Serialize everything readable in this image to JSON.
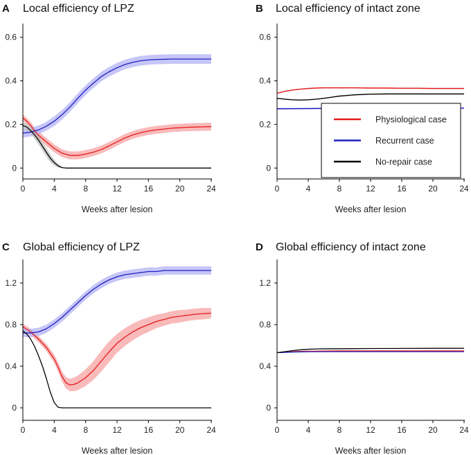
{
  "chart_data": [
    {
      "letter": "A",
      "type": "line",
      "title": "Local efficiency of LPZ",
      "xlabel": "Weeks after lesion",
      "ylabel": "",
      "xlim": [
        0,
        24
      ],
      "ylim": [
        -0.05,
        0.65
      ],
      "xticks": [
        "0",
        "4",
        "8",
        "12",
        "16",
        "20",
        "24"
      ],
      "yticks": [
        "0",
        "0.2",
        "0.4",
        "0.6"
      ],
      "series": [
        {
          "name": "Physiological case",
          "color": "#e31a1c",
          "band_color": "#f7a3a3",
          "x": [
            0,
            0.5,
            1,
            1.5,
            2,
            3,
            4,
            5,
            6,
            7,
            8,
            9,
            10,
            11,
            12,
            13,
            14,
            15,
            16,
            17,
            18,
            19,
            20,
            21,
            22,
            23,
            24
          ],
          "y": [
            0.23,
            0.215,
            0.195,
            0.17,
            0.15,
            0.12,
            0.09,
            0.068,
            0.058,
            0.058,
            0.064,
            0.073,
            0.085,
            0.102,
            0.12,
            0.138,
            0.152,
            0.162,
            0.17,
            0.175,
            0.179,
            0.183,
            0.185,
            0.187,
            0.188,
            0.189,
            0.19
          ],
          "band": [
            0.015,
            0.015,
            0.015,
            0.016,
            0.017,
            0.018,
            0.018,
            0.018,
            0.018,
            0.018,
            0.018,
            0.018,
            0.018,
            0.018,
            0.018,
            0.018,
            0.018,
            0.018,
            0.018,
            0.018,
            0.018,
            0.018,
            0.018,
            0.018,
            0.018,
            0.018,
            0.018
          ]
        },
        {
          "name": "Recurrent case",
          "color": "#1f1fbf",
          "band_color": "#b3b3f5",
          "x": [
            0,
            1,
            2,
            3,
            4,
            5,
            6,
            7,
            8,
            9,
            10,
            11,
            12,
            13,
            14,
            15,
            16,
            17,
            18,
            19,
            20,
            21,
            22,
            23,
            24
          ],
          "y": [
            0.16,
            0.165,
            0.175,
            0.192,
            0.215,
            0.245,
            0.28,
            0.32,
            0.358,
            0.39,
            0.42,
            0.442,
            0.46,
            0.475,
            0.485,
            0.492,
            0.496,
            0.498,
            0.499,
            0.5,
            0.5,
            0.5,
            0.5,
            0.5,
            0.5
          ],
          "band": [
            0.02,
            0.02,
            0.02,
            0.02,
            0.022,
            0.022,
            0.022,
            0.022,
            0.022,
            0.022,
            0.022,
            0.022,
            0.022,
            0.022,
            0.022,
            0.022,
            0.022,
            0.022,
            0.022,
            0.022,
            0.022,
            0.022,
            0.022,
            0.022,
            0.022
          ]
        },
        {
          "name": "No-repair case",
          "color": "#000000",
          "band_color": "#bdbdbd",
          "x": [
            0,
            0.5,
            1,
            1.5,
            2,
            2.5,
            3,
            3.5,
            4,
            4.5,
            5,
            5.5,
            6,
            8,
            12,
            16,
            20,
            24
          ],
          "y": [
            0.195,
            0.188,
            0.172,
            0.152,
            0.128,
            0.1,
            0.072,
            0.045,
            0.025,
            0.01,
            0.002,
            0,
            0,
            0,
            0,
            0,
            0,
            0
          ],
          "band": [
            0.015,
            0.015,
            0.016,
            0.018,
            0.02,
            0.02,
            0.02,
            0.018,
            0.014,
            0.008,
            0.003,
            0,
            0,
            0,
            0,
            0,
            0,
            0
          ]
        }
      ]
    },
    {
      "letter": "B",
      "type": "line",
      "title": "Local efficiency of intact zone",
      "xlabel": "Weeks after lesion",
      "ylabel": "",
      "xlim": [
        0,
        24
      ],
      "ylim": [
        -0.05,
        0.65
      ],
      "xticks": [
        "0",
        "4",
        "8",
        "12",
        "16",
        "20",
        "24"
      ],
      "yticks": [
        "0",
        "0.2",
        "0.4",
        "0.6"
      ],
      "legend": {
        "position": "bottom-right",
        "entries": [
          "Physiological case",
          "Recurrent case",
          "No-repair case"
        ]
      },
      "series": [
        {
          "name": "Physiological case",
          "color": "#e31a1c",
          "band_color": "#f7a3a3",
          "x": [
            0,
            1,
            2,
            3,
            4,
            5,
            6,
            8,
            10,
            12,
            14,
            16,
            18,
            20,
            22,
            24
          ],
          "y": [
            0.343,
            0.352,
            0.358,
            0.362,
            0.365,
            0.367,
            0.368,
            0.368,
            0.368,
            0.367,
            0.367,
            0.366,
            0.366,
            0.365,
            0.365,
            0.365
          ],
          "band": [
            0.003,
            0.003,
            0.003,
            0.003,
            0.003,
            0.003,
            0.003,
            0.003,
            0.003,
            0.003,
            0.003,
            0.003,
            0.003,
            0.003,
            0.003,
            0.003
          ]
        },
        {
          "name": "Recurrent case",
          "color": "#1f1fbf",
          "band_color": "#b3b3f5",
          "x": [
            0,
            4,
            8,
            12,
            16,
            20,
            24
          ],
          "y": [
            0.272,
            0.273,
            0.274,
            0.275,
            0.275,
            0.275,
            0.275
          ],
          "band": [
            0.004,
            0.004,
            0.004,
            0.004,
            0.004,
            0.004,
            0.004
          ]
        },
        {
          "name": "No-repair case",
          "color": "#000000",
          "band_color": "#bdbdbd",
          "x": [
            0,
            1,
            2,
            3,
            4,
            5,
            6,
            7,
            8,
            10,
            12,
            14,
            16,
            18,
            20,
            22,
            24
          ],
          "y": [
            0.32,
            0.316,
            0.313,
            0.312,
            0.313,
            0.316,
            0.32,
            0.325,
            0.33,
            0.336,
            0.339,
            0.34,
            0.34,
            0.34,
            0.34,
            0.34,
            0.34
          ],
          "band": [
            0.003,
            0.003,
            0.003,
            0.003,
            0.003,
            0.003,
            0.003,
            0.003,
            0.003,
            0.003,
            0.003,
            0.003,
            0.003,
            0.003,
            0.003,
            0.003,
            0.003
          ]
        }
      ]
    },
    {
      "letter": "C",
      "type": "line",
      "title": "Global efficiency of LPZ",
      "xlabel": "Weeks after lesion",
      "ylabel": "",
      "xlim": [
        0,
        24
      ],
      "ylim": [
        -0.12,
        1.4
      ],
      "xticks": [
        "0",
        "4",
        "8",
        "12",
        "16",
        "20",
        "24"
      ],
      "yticks": [
        "0",
        "0.4",
        "0.8",
        "1.2"
      ],
      "series": [
        {
          "name": "Physiological case",
          "color": "#e31a1c",
          "band_color": "#f7a3a3",
          "x": [
            0,
            1,
            2,
            3,
            4,
            4.5,
            5,
            5.5,
            6,
            6.5,
            7,
            8,
            9,
            10,
            11,
            12,
            13,
            14,
            15,
            16,
            17,
            18,
            19,
            20,
            21,
            22,
            23,
            24
          ],
          "y": [
            0.78,
            0.73,
            0.66,
            0.58,
            0.47,
            0.39,
            0.3,
            0.24,
            0.22,
            0.225,
            0.24,
            0.29,
            0.36,
            0.45,
            0.54,
            0.62,
            0.68,
            0.73,
            0.77,
            0.8,
            0.83,
            0.85,
            0.87,
            0.88,
            0.89,
            0.9,
            0.905,
            0.91
          ],
          "band": [
            0.03,
            0.03,
            0.03,
            0.035,
            0.04,
            0.045,
            0.05,
            0.055,
            0.06,
            0.065,
            0.07,
            0.08,
            0.09,
            0.1,
            0.1,
            0.09,
            0.085,
            0.08,
            0.075,
            0.07,
            0.065,
            0.06,
            0.06,
            0.06,
            0.055,
            0.055,
            0.055,
            0.05
          ]
        },
        {
          "name": "Recurrent case",
          "color": "#1f1fbf",
          "band_color": "#b3b3f5",
          "x": [
            0,
            1,
            2,
            3,
            4,
            5,
            6,
            7,
            8,
            9,
            10,
            11,
            12,
            13,
            14,
            15,
            16,
            17,
            18,
            19,
            20,
            21,
            22,
            23,
            24
          ],
          "y": [
            0.72,
            0.72,
            0.73,
            0.76,
            0.81,
            0.87,
            0.94,
            1.01,
            1.08,
            1.14,
            1.19,
            1.23,
            1.26,
            1.28,
            1.29,
            1.3,
            1.31,
            1.31,
            1.32,
            1.32,
            1.32,
            1.32,
            1.32,
            1.32,
            1.32
          ],
          "band": [
            0.04,
            0.04,
            0.04,
            0.04,
            0.04,
            0.04,
            0.04,
            0.04,
            0.04,
            0.04,
            0.04,
            0.04,
            0.04,
            0.04,
            0.04,
            0.04,
            0.04,
            0.04,
            0.04,
            0.04,
            0.04,
            0.04,
            0.04,
            0.04,
            0.04
          ]
        },
        {
          "name": "No-repair case",
          "color": "#000000",
          "band_color": "#bdbdbd",
          "x": [
            0,
            0.5,
            1,
            1.5,
            2,
            2.5,
            3,
            3.5,
            4,
            4.5,
            5,
            6,
            8,
            12,
            16,
            20,
            24
          ],
          "y": [
            0.74,
            0.71,
            0.66,
            0.59,
            0.5,
            0.4,
            0.28,
            0.15,
            0.05,
            0.005,
            0,
            0,
            0,
            0,
            0,
            0,
            0
          ],
          "band": [
            0,
            0,
            0,
            0,
            0,
            0,
            0,
            0,
            0,
            0,
            0,
            0,
            0,
            0,
            0,
            0,
            0
          ]
        }
      ]
    },
    {
      "letter": "D",
      "type": "line",
      "title": "Global efficiency of intact zone",
      "xlabel": "Weeks after lesion",
      "ylabel": "",
      "xlim": [
        0,
        24
      ],
      "ylim": [
        -0.12,
        1.4
      ],
      "xticks": [
        "0",
        "4",
        "8",
        "12",
        "16",
        "20",
        "24"
      ],
      "yticks": [
        "0",
        "0.4",
        "0.8",
        "1.2"
      ],
      "series": [
        {
          "name": "Physiological case",
          "color": "#e31a1c",
          "band_color": "#f7a3a3",
          "x": [
            0,
            1,
            2,
            3,
            4,
            6,
            8,
            12,
            16,
            20,
            24
          ],
          "y": [
            0.53,
            0.535,
            0.54,
            0.542,
            0.544,
            0.546,
            0.547,
            0.547,
            0.547,
            0.547,
            0.547
          ],
          "band": [
            0,
            0,
            0,
            0,
            0,
            0,
            0,
            0,
            0,
            0,
            0
          ]
        },
        {
          "name": "Recurrent case",
          "color": "#1f1fbf",
          "band_color": "#b3b3f5",
          "x": [
            0,
            1,
            2,
            3,
            4,
            6,
            8,
            12,
            16,
            20,
            24
          ],
          "y": [
            0.53,
            0.533,
            0.536,
            0.538,
            0.539,
            0.54,
            0.54,
            0.54,
            0.54,
            0.54,
            0.54
          ],
          "band": [
            0,
            0,
            0,
            0,
            0,
            0,
            0,
            0,
            0,
            0,
            0
          ]
        },
        {
          "name": "No-repair case",
          "color": "#000000",
          "band_color": "#bdbdbd",
          "x": [
            0,
            1,
            2,
            3,
            4,
            5,
            6,
            8,
            12,
            16,
            20,
            24
          ],
          "y": [
            0.53,
            0.54,
            0.55,
            0.558,
            0.563,
            0.566,
            0.567,
            0.568,
            0.57,
            0.571,
            0.572,
            0.572
          ],
          "band": [
            0,
            0,
            0,
            0,
            0,
            0,
            0,
            0,
            0,
            0,
            0,
            0
          ]
        }
      ]
    }
  ]
}
